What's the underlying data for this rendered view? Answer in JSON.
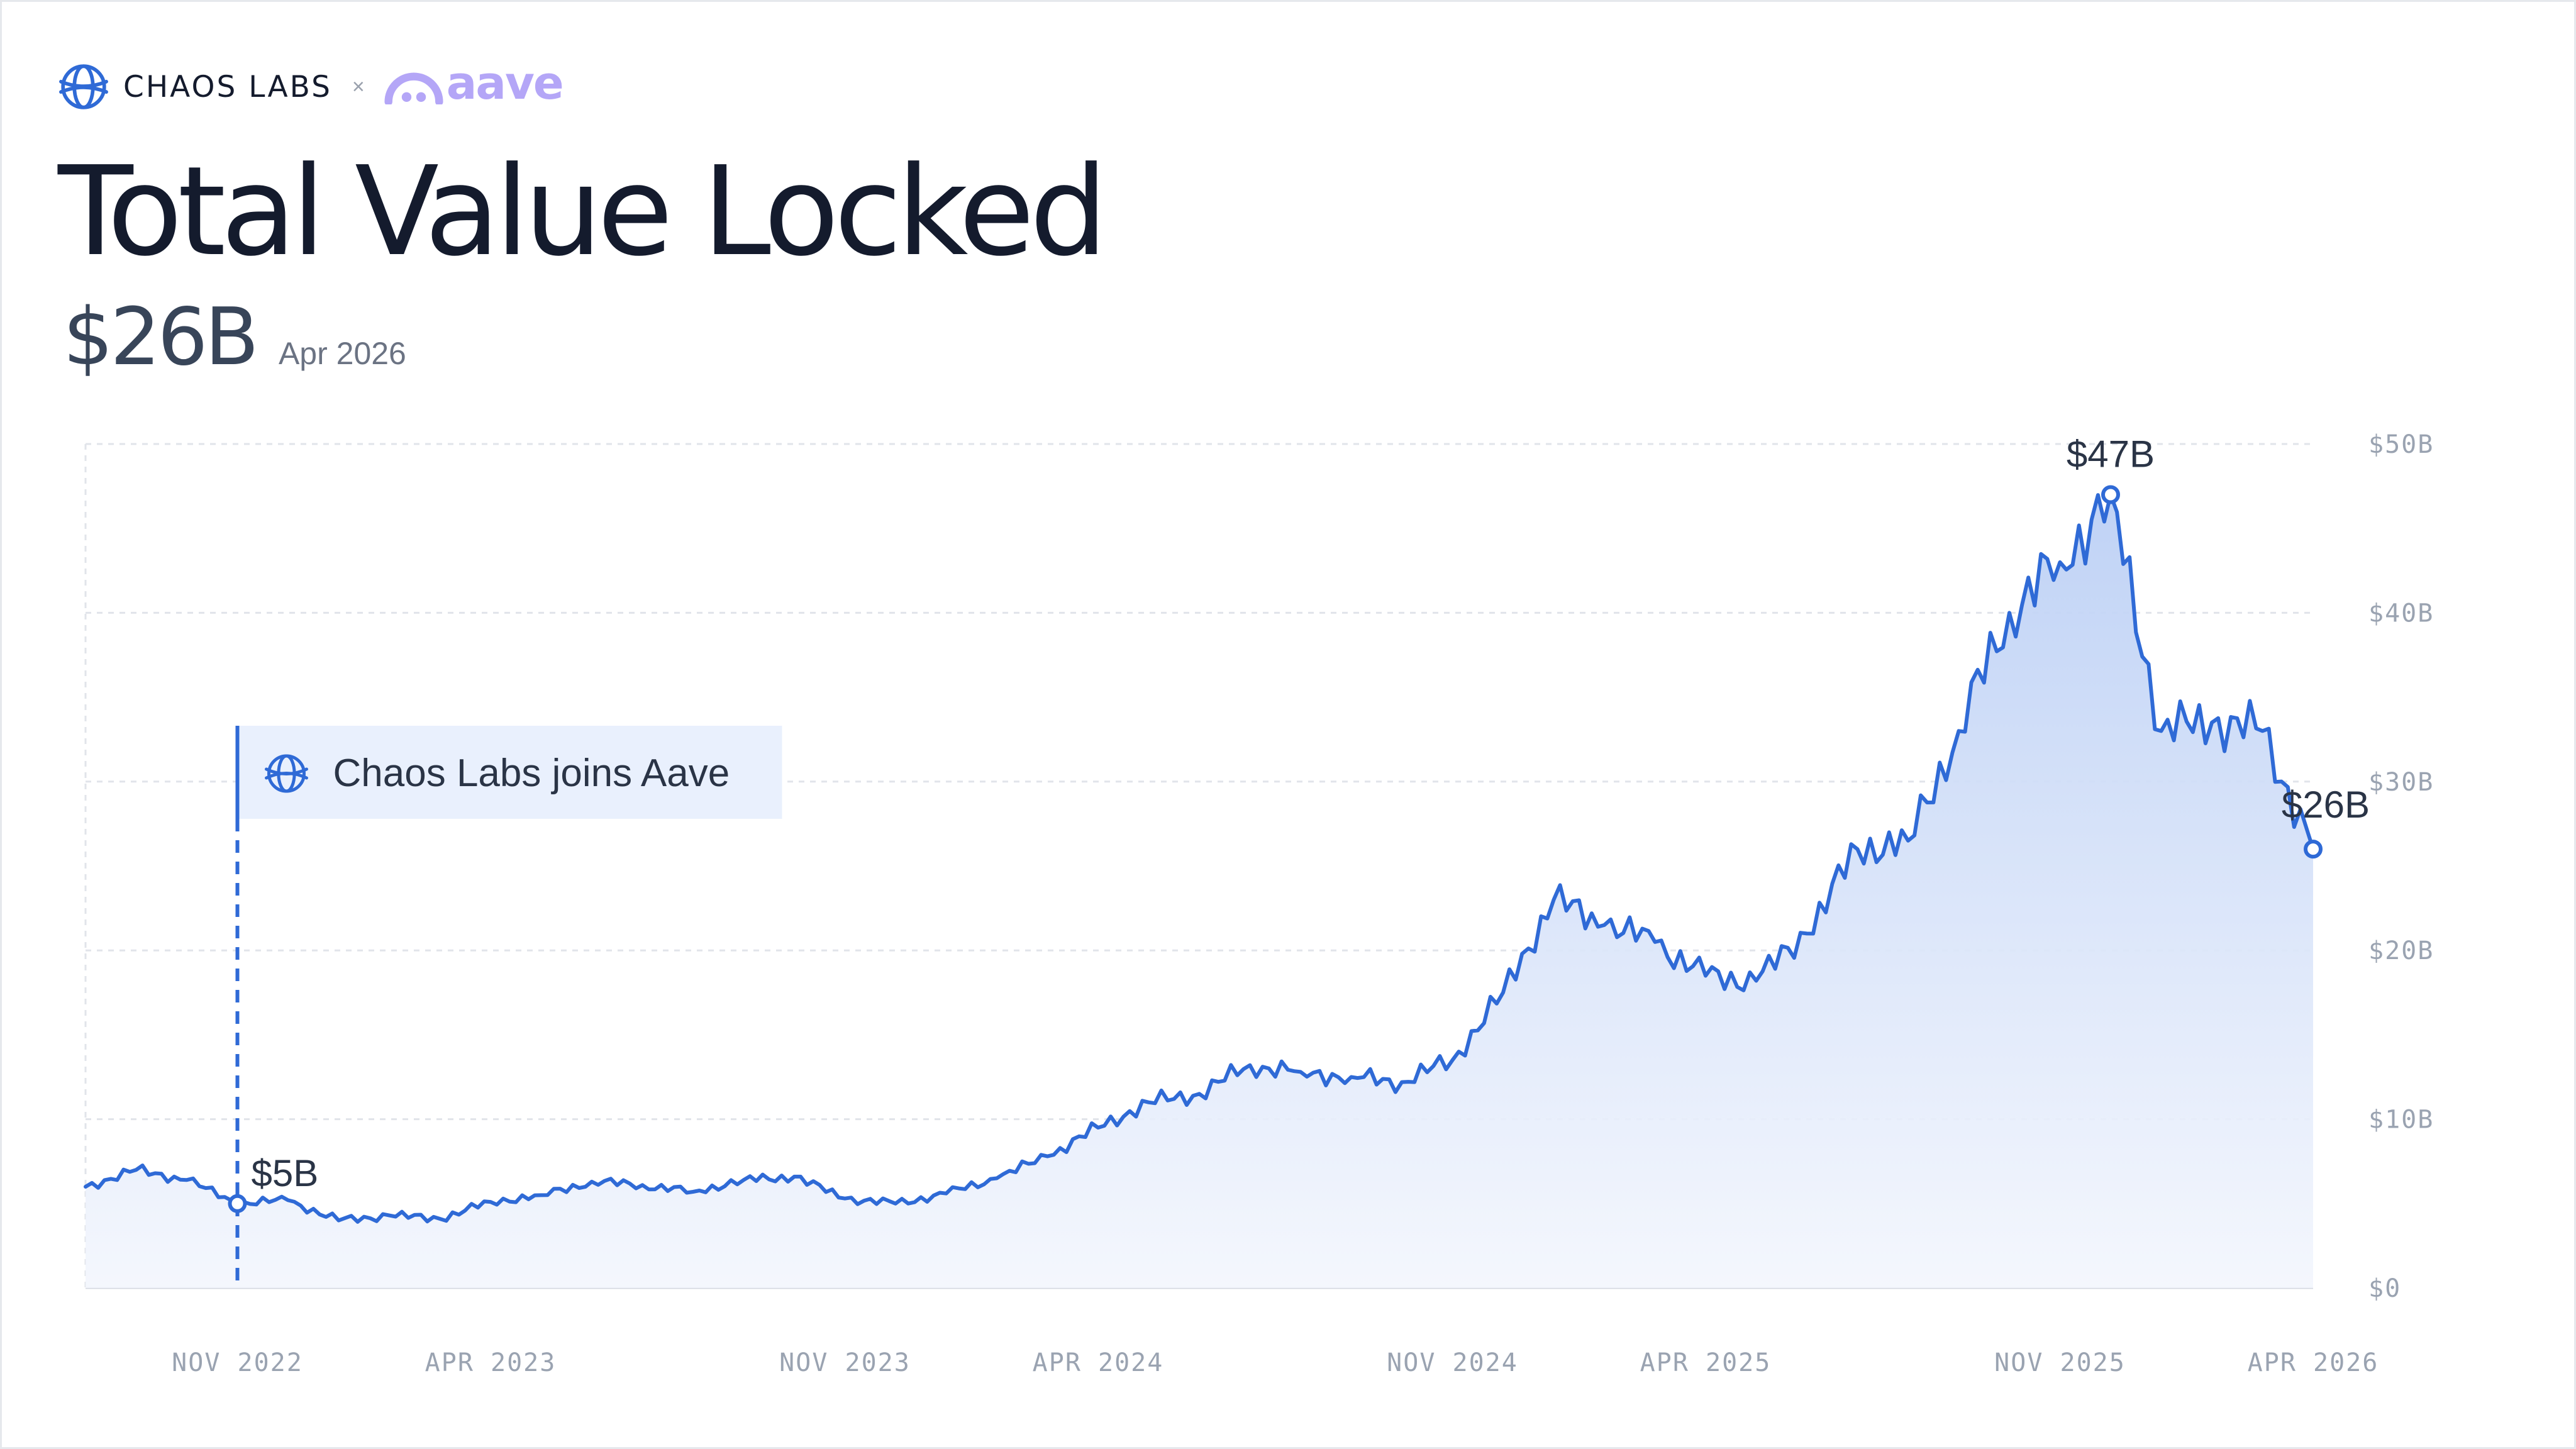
{
  "brand": {
    "chaos_name": "CHAOS LABS",
    "separator": "×",
    "partner_name": "aave",
    "chaos_logo_icon": "chaos-labs-globe-icon",
    "aave_logo_icon": "aave-ghost-icon",
    "accent_color": "#2f6ad6",
    "aave_color": "#b4a6f7"
  },
  "title": "Total Value Locked",
  "headline": {
    "value": "$26B",
    "date": "Apr 2026"
  },
  "callout": {
    "label": "Chaos Labs joins Aave"
  },
  "chart_data": {
    "type": "area",
    "title": "Total Value Locked",
    "xlabel": "",
    "ylabel": "",
    "x_range": [
      "2022-08",
      "2026-04"
    ],
    "ylim": [
      0,
      50
    ],
    "unit": "$B",
    "grid": true,
    "x_ticks": [
      "NOV 2022",
      "APR 2023",
      "NOV 2023",
      "APR 2024",
      "NOV 2024",
      "APR 2025",
      "NOV 2025",
      "APR 2026"
    ],
    "y_ticks": [
      "$0",
      "$10B",
      "$20B",
      "$30B",
      "$40B",
      "$50B"
    ],
    "event": {
      "date": "2022-11",
      "label": "Chaos Labs joins Aave",
      "value": 5,
      "value_label": "$5B"
    },
    "annotations": [
      {
        "date": "2025-12",
        "value": 47,
        "label": "$47B"
      },
      {
        "date": "2026-04",
        "value": 26,
        "label": "$26B"
      }
    ],
    "series": [
      {
        "points": [
          [
            "2022-08",
            6
          ],
          [
            "2022-09",
            7
          ],
          [
            "2022-10",
            6.4
          ],
          [
            "2022-11",
            5
          ],
          [
            "2022-12",
            5.2
          ],
          [
            "2023-01",
            4
          ],
          [
            "2023-02",
            4.3
          ],
          [
            "2023-03",
            4.1
          ],
          [
            "2023-04",
            5.1
          ],
          [
            "2023-05",
            5.5
          ],
          [
            "2023-06",
            6.3
          ],
          [
            "2023-07",
            6.1
          ],
          [
            "2023-08",
            5.7
          ],
          [
            "2023-09",
            6.4
          ],
          [
            "2023-10",
            6.6
          ],
          [
            "2023-11",
            5.3
          ],
          [
            "2023-12",
            5.0
          ],
          [
            "2024-01",
            5.6
          ],
          [
            "2024-02",
            6.5
          ],
          [
            "2024-03",
            7.8
          ],
          [
            "2024-04",
            9.5
          ],
          [
            "2024-05",
            11
          ],
          [
            "2024-06",
            11.5
          ],
          [
            "2024-07",
            13.2
          ],
          [
            "2024-08",
            12.8
          ],
          [
            "2024-09",
            12.5
          ],
          [
            "2024-10",
            12.2
          ],
          [
            "2024-11",
            13.5
          ],
          [
            "2024-12",
            17.5
          ],
          [
            "2025-01",
            23
          ],
          [
            "2025-02",
            21.5
          ],
          [
            "2025-03",
            20.5
          ],
          [
            "2025-04",
            18.5
          ],
          [
            "2025-05",
            18.2
          ],
          [
            "2025-06",
            21
          ],
          [
            "2025-07",
            26
          ],
          [
            "2025-08",
            26.5
          ],
          [
            "2025-09",
            33
          ],
          [
            "2025-10",
            40
          ],
          [
            "2025-11",
            43
          ],
          [
            "2025-12",
            47
          ],
          [
            "2026-01",
            33
          ],
          [
            "2026-02",
            33.5
          ],
          [
            "2026-03",
            33
          ],
          [
            "2026-04",
            26
          ]
        ]
      }
    ]
  }
}
